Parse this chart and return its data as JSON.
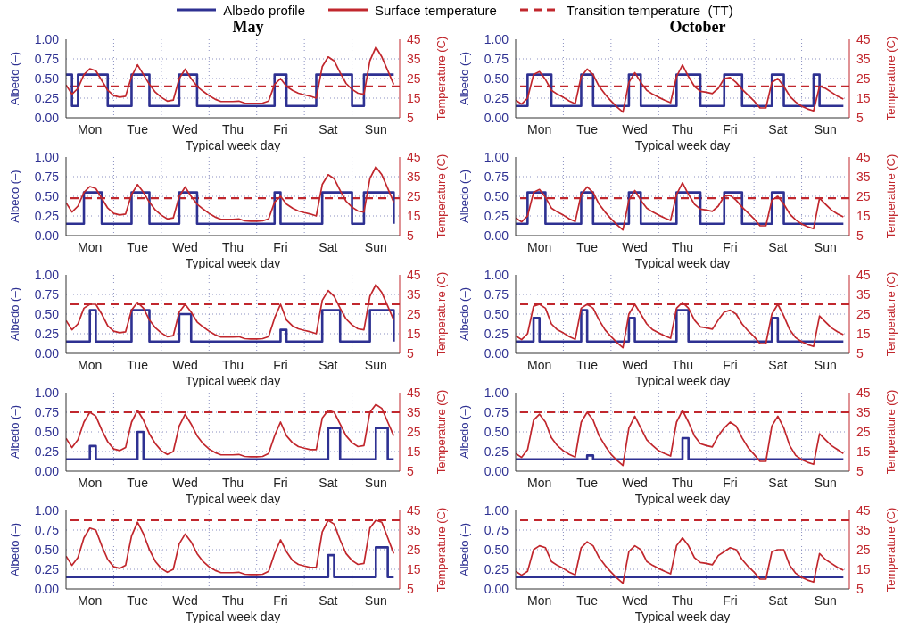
{
  "chart_data": [
    {
      "type": "line",
      "title": "May",
      "xlabel": "Typical week day",
      "ylabel": "Albedo (–)",
      "y2label": "Temperature (C)",
      "legend": "top",
      "grid": true,
      "categories": [
        null,
        null,
        null,
        null,
        "Mon",
        null,
        null,
        null,
        null,
        null,
        null,
        null,
        "Tue",
        null,
        null,
        null,
        null,
        null,
        null,
        null,
        "Wed",
        null,
        null,
        null,
        null,
        null,
        null,
        null,
        "Thu",
        null,
        null,
        null,
        null,
        null,
        null,
        null,
        "Fri",
        null,
        null,
        null,
        null,
        null,
        null,
        null,
        "Sat",
        null,
        null,
        null,
        null,
        null,
        null,
        null,
        "Sun",
        null,
        null,
        null
      ],
      "ylim": [
        0,
        1
      ],
      "yticks": [
        {
          "value": 0,
          "label": "0.00"
        },
        {
          "value": 0.25,
          "label": "0.25"
        },
        {
          "value": 0.5,
          "label": "0.50"
        },
        {
          "value": 0.75,
          "label": "0.75"
        },
        {
          "value": 1,
          "label": "1.00"
        }
      ],
      "y2lim": [
        5,
        45
      ],
      "y2ticks": [
        5,
        15,
        25,
        35,
        45
      ],
      "ref_lines": [
        {
          "axis": "y2",
          "value": 21,
          "label": "Transition temperature  (TT)",
          "color": "#c1272d",
          "line_style": "dashed"
        }
      ],
      "series": [
        {
          "name": "Albedo profile",
          "type": "step",
          "color": "#2e3192",
          "values": [
            0.55,
            0.15,
            0.55,
            0.55,
            0.55,
            0.55,
            0.55,
            0.15,
            0.15,
            0.15,
            0.15,
            0.55,
            0.55,
            0.55,
            0.15,
            0.15,
            0.15,
            0.15,
            0.15,
            0.55,
            0.55,
            0.55,
            0.15,
            0.15,
            0.15,
            0.15,
            0.15,
            0.15,
            0.15,
            0.15,
            0.15,
            0.15,
            0.15,
            0.15,
            0.15,
            0.55,
            0.55,
            0.15,
            0.15,
            0.15,
            0.15,
            0.15,
            0.55,
            0.55,
            0.55,
            0.55,
            0.55,
            0.55,
            0.15,
            0.15,
            0.55,
            0.55,
            0.55,
            0.55,
            0.55,
            0.55
          ]
        },
        {
          "name": "Surface temperature",
          "type": "line",
          "axis": "y2",
          "color": "#c1272d",
          "values": [
            21.7,
            17,
            20,
            27,
            30,
            29,
            24,
            19,
            16.3,
            15.5,
            16,
            26,
            32,
            27,
            22,
            18,
            15.4,
            13.5,
            14,
            25,
            29.8,
            25,
            21,
            18.5,
            16.3,
            14.5,
            13.3,
            13.3,
            13.3,
            13.5,
            12.5,
            12.3,
            12.3,
            12.5,
            13.5,
            22,
            25,
            21,
            19,
            17.5,
            16.7,
            16,
            15,
            31,
            36,
            34,
            28,
            22.5,
            19.5,
            17.5,
            17,
            34,
            41,
            36,
            29,
            22
          ]
        }
      ]
    },
    {
      "type": "line",
      "title": "October",
      "xlabel": "Typical week day",
      "ylabel": "Albedo (–)",
      "y2label": "Temperature (C)",
      "grid": true,
      "categories": [
        null,
        null,
        null,
        null,
        "Mon",
        null,
        null,
        null,
        null,
        null,
        null,
        null,
        "Tue",
        null,
        null,
        null,
        null,
        null,
        null,
        null,
        "Wed",
        null,
        null,
        null,
        null,
        null,
        null,
        null,
        "Thu",
        null,
        null,
        null,
        null,
        null,
        null,
        null,
        "Fri",
        null,
        null,
        null,
        null,
        null,
        null,
        null,
        "Sat",
        null,
        null,
        null,
        null,
        null,
        null,
        null,
        "Sun",
        null,
        null,
        null
      ],
      "ylim": [
        0,
        1
      ],
      "yticks": [
        {
          "value": 0,
          "label": "0.00"
        },
        {
          "value": 0.25,
          "label": "0.25"
        },
        {
          "value": 0.5,
          "label": "0.50"
        },
        {
          "value": 0.75,
          "label": "0.75"
        },
        {
          "value": 1,
          "label": "1.00"
        }
      ],
      "y2lim": [
        5,
        45
      ],
      "y2ticks": [
        5,
        15,
        25,
        35,
        45
      ],
      "ref_lines": [
        {
          "axis": "y2",
          "value": 21,
          "color": "#c1272d",
          "line_style": "dashed"
        }
      ],
      "series": [
        {
          "type": "step",
          "color": "#2e3192",
          "values": [
            0.15,
            0.15,
            0.55,
            0.55,
            0.55,
            0.55,
            0.15,
            0.15,
            0.15,
            0.15,
            0.15,
            0.55,
            0.55,
            0.15,
            0.15,
            0.15,
            0.15,
            0.15,
            0.15,
            0.55,
            0.55,
            0.15,
            0.15,
            0.15,
            0.15,
            0.15,
            0.15,
            0.55,
            0.55,
            0.55,
            0.55,
            0.15,
            0.15,
            0.15,
            0.15,
            0.55,
            0.55,
            0.55,
            0.15,
            0.15,
            0.15,
            0.15,
            0.15,
            0.55,
            0.55,
            0.15,
            0.15,
            0.15,
            0.15,
            0.15,
            0.55,
            0.15,
            0.15,
            0.15,
            0.15,
            0.15
          ]
        },
        {
          "type": "line",
          "axis": "y2",
          "color": "#c1272d",
          "values": [
            14,
            12,
            15,
            27,
            28.5,
            24.5,
            19,
            17,
            15.4,
            13.5,
            12.2,
            26,
            29.8,
            27,
            21,
            17,
            13.6,
            10.5,
            7.9,
            23,
            28,
            23,
            19,
            17,
            15.4,
            14,
            12.7,
            26,
            31.9,
            26,
            21,
            18.5,
            18,
            17.3,
            20,
            25,
            25.5,
            23,
            19.5,
            16.5,
            13.6,
            10,
            10,
            23,
            25,
            21,
            16,
            13,
            10.9,
            9.5,
            8.5,
            21,
            20,
            18,
            16,
            14.5
          ]
        }
      ]
    },
    {
      "type": "line",
      "xlabel": "Typical week day",
      "ylabel": "Albeco (–)",
      "y2label": "Temperature (C)",
      "grid": true,
      "categories": [
        null,
        null,
        null,
        null,
        "Mon",
        null,
        null,
        null,
        null,
        null,
        null,
        null,
        "Tue",
        null,
        null,
        null,
        null,
        null,
        null,
        null,
        "Wed",
        null,
        null,
        null,
        null,
        null,
        null,
        null,
        "Thu",
        null,
        null,
        null,
        null,
        null,
        null,
        null,
        "Fri",
        null,
        null,
        null,
        null,
        null,
        null,
        null,
        "Sat",
        null,
        null,
        null,
        null,
        null,
        null,
        null,
        "Sun",
        null,
        null,
        null
      ],
      "ylim": [
        0,
        1
      ],
      "yticks": [
        {
          "value": 0,
          "label": "0.00"
        },
        {
          "value": 0.25,
          "label": "0.25"
        },
        {
          "value": 0.5,
          "label": "0.50"
        },
        {
          "value": 0.75,
          "label": "0.75"
        },
        {
          "value": 1,
          "label": "1.00"
        }
      ],
      "y2lim": [
        5,
        45
      ],
      "y2ticks": [
        5,
        15,
        25,
        35,
        45
      ],
      "ref_lines": [
        {
          "axis": "y2",
          "value": 24,
          "color": "#c1272d",
          "line_style": "dashed"
        }
      ],
      "series": [
        {
          "type": "step",
          "color": "#2e3192",
          "values": [
            0.15,
            0.15,
            0.15,
            0.55,
            0.55,
            0.55,
            0.15,
            0.15,
            0.15,
            0.15,
            0.15,
            0.55,
            0.55,
            0.55,
            0.15,
            0.15,
            0.15,
            0.15,
            0.15,
            0.55,
            0.55,
            0.55,
            0.15,
            0.15,
            0.15,
            0.15,
            0.15,
            0.15,
            0.15,
            0.15,
            0.15,
            0.15,
            0.15,
            0.15,
            0.15,
            0.55,
            0.15,
            0.15,
            0.15,
            0.15,
            0.15,
            0.15,
            0.15,
            0.55,
            0.55,
            0.55,
            0.55,
            0.55,
            0.15,
            0.15,
            0.55,
            0.55,
            0.55,
            0.55,
            0.55,
            0.15
          ]
        },
        {
          "type": "line",
          "axis": "y2",
          "color": "#c1272d",
          "values": [
            21.7,
            17,
            20,
            27,
            30,
            29,
            24,
            19,
            16.3,
            15.5,
            16,
            26,
            31,
            27,
            22,
            18,
            15.4,
            13.5,
            14,
            25,
            29.8,
            25,
            21,
            18.5,
            16.3,
            14.5,
            13.3,
            13.3,
            13.3,
            13.5,
            12.5,
            12.3,
            12.3,
            12.5,
            13.5,
            22,
            25,
            21,
            19,
            17.5,
            16.7,
            16,
            15,
            31,
            36,
            34,
            28,
            22.5,
            19.5,
            17.5,
            17,
            34,
            40,
            36,
            29,
            22
          ]
        }
      ]
    },
    {
      "type": "line",
      "xlabel": "Typical week day",
      "ylabel": "Albedo (–)",
      "y2label": "Temperature (C)",
      "grid": true,
      "categories": [
        null,
        null,
        null,
        null,
        "Mon",
        null,
        null,
        null,
        null,
        null,
        null,
        null,
        "Tue",
        null,
        null,
        null,
        null,
        null,
        null,
        null,
        "Wed",
        null,
        null,
        null,
        null,
        null,
        null,
        null,
        "Thu",
        null,
        null,
        null,
        null,
        null,
        null,
        null,
        "Fri",
        null,
        null,
        null,
        null,
        null,
        null,
        null,
        "Sat",
        null,
        null,
        null,
        null,
        null,
        null,
        null,
        "Sun",
        null,
        null,
        null
      ],
      "ylim": [
        0,
        1
      ],
      "yticks": [
        {
          "value": 0,
          "label": "0.00"
        },
        {
          "value": 0.25,
          "label": "0.25"
        },
        {
          "value": 0.5,
          "label": "0.50"
        },
        {
          "value": 0.75,
          "label": "0.75"
        },
        {
          "value": 1,
          "label": "1.00"
        }
      ],
      "y2lim": [
        5,
        45
      ],
      "y2ticks": [
        5,
        15,
        25,
        35,
        45
      ],
      "ref_lines": [
        {
          "axis": "y2",
          "value": 24,
          "color": "#c1272d",
          "line_style": "dashed"
        }
      ],
      "series": [
        {
          "type": "step",
          "color": "#2e3192",
          "values": [
            0.15,
            0.15,
            0.55,
            0.55,
            0.55,
            0.15,
            0.15,
            0.15,
            0.15,
            0.15,
            0.15,
            0.55,
            0.55,
            0.15,
            0.15,
            0.15,
            0.15,
            0.15,
            0.15,
            0.55,
            0.55,
            0.15,
            0.15,
            0.15,
            0.15,
            0.15,
            0.15,
            0.55,
            0.55,
            0.55,
            0.55,
            0.15,
            0.15,
            0.15,
            0.15,
            0.55,
            0.55,
            0.55,
            0.15,
            0.15,
            0.15,
            0.15,
            0.15,
            0.55,
            0.55,
            0.15,
            0.15,
            0.15,
            0.15,
            0.15,
            0.15,
            0.15,
            0.15,
            0.15,
            0.15,
            0.15
          ]
        },
        {
          "type": "line",
          "axis": "y2",
          "color": "#c1272d",
          "values": [
            14,
            12,
            15,
            27,
            28.5,
            24.5,
            19,
            17,
            15.4,
            13.5,
            12.2,
            26,
            29.8,
            27,
            21,
            17,
            13.6,
            10.5,
            7.9,
            23,
            28,
            23,
            19,
            17,
            15.4,
            14,
            12.7,
            26,
            31.9,
            26,
            21,
            18.5,
            18,
            17.3,
            20,
            25,
            25.5,
            23,
            19.5,
            16.5,
            13.6,
            10,
            10,
            23,
            25,
            21,
            16,
            13,
            10.9,
            9.5,
            8.5,
            24,
            21,
            18,
            16,
            14.5
          ]
        }
      ]
    },
    {
      "type": "line",
      "xlabel": "Typical week day",
      "ylabel": "Albedo (–)",
      "y2label": "Temperature (C)",
      "grid": true,
      "categories": [
        null,
        null,
        null,
        null,
        "Mon",
        null,
        null,
        null,
        null,
        null,
        null,
        null,
        "Tue",
        null,
        null,
        null,
        null,
        null,
        null,
        null,
        "Wed",
        null,
        null,
        null,
        null,
        null,
        null,
        null,
        "Thu",
        null,
        null,
        null,
        null,
        null,
        null,
        null,
        "Fri",
        null,
        null,
        null,
        null,
        null,
        null,
        null,
        "Sat",
        null,
        null,
        null,
        null,
        null,
        null,
        null,
        "Sun",
        null,
        null,
        null
      ],
      "ylim": [
        0,
        1
      ],
      "yticks": [
        {
          "value": 0,
          "label": "0.00"
        },
        {
          "value": 0.25,
          "label": "0.25"
        },
        {
          "value": 0.5,
          "label": "0.50"
        },
        {
          "value": 0.75,
          "label": "0.75"
        },
        {
          "value": 1,
          "label": "1.00"
        }
      ],
      "y2lim": [
        5,
        45
      ],
      "y2ticks": [
        5,
        15,
        25,
        35,
        45
      ],
      "ref_lines": [
        {
          "axis": "y2",
          "value": 30,
          "color": "#c1272d",
          "line_style": "dashed"
        }
      ],
      "series": [
        {
          "type": "step",
          "color": "#2e3192",
          "values": [
            0.15,
            0.15,
            0.15,
            0.15,
            0.55,
            0.15,
            0.15,
            0.15,
            0.15,
            0.15,
            0.15,
            0.55,
            0.55,
            0.55,
            0.15,
            0.15,
            0.15,
            0.15,
            0.15,
            0.5,
            0.5,
            0.15,
            0.15,
            0.15,
            0.15,
            0.15,
            0.15,
            0.15,
            0.15,
            0.15,
            0.15,
            0.15,
            0.15,
            0.15,
            0.15,
            0.15,
            0.3,
            0.15,
            0.15,
            0.15,
            0.15,
            0.15,
            0.15,
            0.55,
            0.55,
            0.55,
            0.15,
            0.15,
            0.15,
            0.15,
            0.15,
            0.55,
            0.55,
            0.55,
            0.55,
            0.15
          ]
        },
        {
          "type": "line",
          "axis": "y2",
          "color": "#c1272d",
          "values": [
            21.7,
            17,
            20,
            28,
            30,
            30,
            25,
            19,
            16.3,
            15.5,
            16,
            27,
            31,
            28,
            22,
            18,
            15.4,
            13.5,
            14,
            26,
            30,
            26,
            21,
            18.5,
            16.3,
            14.5,
            13.3,
            13.3,
            13.3,
            13.5,
            12.5,
            12.3,
            12.3,
            12.5,
            13.5,
            23,
            30,
            22,
            19,
            17.5,
            16.7,
            16,
            15,
            32,
            37,
            34,
            28,
            22.5,
            19.5,
            17.5,
            17,
            34,
            40,
            36,
            29,
            22
          ]
        }
      ]
    },
    {
      "type": "line",
      "xlabel": "Typical week day",
      "ylabel": "Albedo (–)",
      "y2label": "Temperature (C)",
      "grid": true,
      "categories": [
        null,
        null,
        null,
        null,
        "Mon",
        null,
        null,
        null,
        null,
        null,
        null,
        null,
        "Tue",
        null,
        null,
        null,
        null,
        null,
        null,
        null,
        "Wed",
        null,
        null,
        null,
        null,
        null,
        null,
        null,
        "Thu",
        null,
        null,
        null,
        null,
        null,
        null,
        null,
        "Fri",
        null,
        null,
        null,
        null,
        null,
        null,
        null,
        "Sat",
        null,
        null,
        null,
        null,
        null,
        null,
        null,
        "Sun",
        null,
        null,
        null
      ],
      "ylim": [
        0,
        1
      ],
      "yticks": [
        {
          "value": 0,
          "label": "0.00"
        },
        {
          "value": 0.25,
          "label": "0.25"
        },
        {
          "value": 0.5,
          "label": "0.50"
        },
        {
          "value": 0.75,
          "label": "0.75"
        },
        {
          "value": 1,
          "label": "1.00"
        }
      ],
      "y2lim": [
        5,
        45
      ],
      "y2ticks": [
        5,
        15,
        25,
        35,
        45
      ],
      "ref_lines": [
        {
          "axis": "y2",
          "value": 30,
          "color": "#c1272d",
          "line_style": "dashed"
        }
      ],
      "series": [
        {
          "type": "step",
          "color": "#2e3192",
          "values": [
            0.15,
            0.15,
            0.15,
            0.45,
            0.15,
            0.15,
            0.15,
            0.15,
            0.15,
            0.15,
            0.15,
            0.55,
            0.15,
            0.15,
            0.15,
            0.15,
            0.15,
            0.15,
            0.15,
            0.45,
            0.15,
            0.15,
            0.15,
            0.15,
            0.15,
            0.15,
            0.15,
            0.55,
            0.55,
            0.15,
            0.15,
            0.15,
            0.15,
            0.15,
            0.15,
            0.15,
            0.15,
            0.15,
            0.15,
            0.15,
            0.15,
            0.15,
            0.15,
            0.45,
            0.15,
            0.15,
            0.15,
            0.15,
            0.15,
            0.15,
            0.15,
            0.15,
            0.15,
            0.15,
            0.15,
            0.15
          ]
        },
        {
          "type": "line",
          "axis": "y2",
          "color": "#c1272d",
          "values": [
            14,
            12,
            15,
            29,
            30,
            28,
            20,
            17,
            15.4,
            13.5,
            12.2,
            28,
            30,
            28,
            22,
            17,
            13.6,
            10.5,
            7.9,
            25,
            30,
            25,
            20,
            17,
            15.4,
            14,
            12.7,
            28,
            31,
            28,
            22,
            18.5,
            18,
            17.3,
            22,
            26,
            27,
            25,
            20,
            16.5,
            13.6,
            10,
            10,
            25,
            30,
            24,
            17,
            13,
            10.9,
            9.5,
            8.5,
            24,
            21,
            18,
            16,
            14.5
          ]
        }
      ]
    },
    {
      "type": "line",
      "xlabel": "Typical week day",
      "ylabel": "Albedo (–)",
      "y2label": "Temperature (C)",
      "grid": true,
      "categories": [
        null,
        null,
        null,
        null,
        "Mon",
        null,
        null,
        null,
        null,
        null,
        null,
        null,
        "Tue",
        null,
        null,
        null,
        null,
        null,
        null,
        null,
        "Wed",
        null,
        null,
        null,
        null,
        null,
        null,
        null,
        "Thu",
        null,
        null,
        null,
        null,
        null,
        null,
        null,
        "Fri",
        null,
        null,
        null,
        null,
        null,
        null,
        null,
        "Sat",
        null,
        null,
        null,
        null,
        null,
        null,
        null,
        "Sun",
        null,
        null,
        null
      ],
      "ylim": [
        0,
        1
      ],
      "yticks": [
        {
          "value": 0,
          "label": "0.00"
        },
        {
          "value": 0.25,
          "label": "0.25"
        },
        {
          "value": 0.5,
          "label": "0.50"
        },
        {
          "value": 0.75,
          "label": "0.75"
        },
        {
          "value": 1,
          "label": "1.00"
        }
      ],
      "y2lim": [
        5,
        45
      ],
      "y2ticks": [
        5,
        15,
        25,
        35,
        45
      ],
      "ref_lines": [
        {
          "axis": "y2",
          "value": 35,
          "color": "#c1272d",
          "line_style": "dashed"
        }
      ],
      "series": [
        {
          "type": "step",
          "color": "#2e3192",
          "values": [
            0.15,
            0.15,
            0.15,
            0.15,
            0.32,
            0.15,
            0.15,
            0.15,
            0.15,
            0.15,
            0.15,
            0.15,
            0.5,
            0.15,
            0.15,
            0.15,
            0.15,
            0.15,
            0.15,
            0.15,
            0.15,
            0.15,
            0.15,
            0.15,
            0.15,
            0.15,
            0.15,
            0.15,
            0.15,
            0.15,
            0.15,
            0.15,
            0.15,
            0.15,
            0.15,
            0.15,
            0.15,
            0.15,
            0.15,
            0.15,
            0.15,
            0.15,
            0.15,
            0.15,
            0.55,
            0.55,
            0.15,
            0.15,
            0.15,
            0.15,
            0.15,
            0.15,
            0.55,
            0.55,
            0.15,
            0.15
          ]
        },
        {
          "type": "line",
          "axis": "y2",
          "color": "#c1272d",
          "values": [
            21.7,
            17,
            21,
            30,
            35,
            33,
            26,
            20,
            16.3,
            15.5,
            17,
            30,
            36,
            31,
            24,
            19,
            15.4,
            13.5,
            15,
            28,
            34,
            29,
            23,
            19,
            16.3,
            14.5,
            13.3,
            13.3,
            13.3,
            13.5,
            12.5,
            12.3,
            12.3,
            12.5,
            14,
            23,
            30,
            23,
            19.5,
            17.5,
            16.7,
            16,
            16,
            32,
            36,
            35,
            29,
            23,
            19.5,
            17.5,
            18,
            35,
            39,
            37,
            30,
            23
          ]
        }
      ]
    },
    {
      "type": "line",
      "xlabel": "Typical week day",
      "ylabel": "Albedo (–)",
      "y2label": "Temperature (C)",
      "grid": true,
      "categories": [
        null,
        null,
        null,
        null,
        "Mon",
        null,
        null,
        null,
        null,
        null,
        null,
        null,
        "Tue",
        null,
        null,
        null,
        null,
        null,
        null,
        null,
        "Wed",
        null,
        null,
        null,
        null,
        null,
        null,
        null,
        "Thu",
        null,
        null,
        null,
        null,
        null,
        null,
        null,
        "Fri",
        null,
        null,
        null,
        null,
        null,
        null,
        null,
        "Sat",
        null,
        null,
        null,
        null,
        null,
        null,
        null,
        "Sun",
        null,
        null,
        null
      ],
      "ylim": [
        0,
        1
      ],
      "yticks": [
        {
          "value": 0,
          "label": "0.00"
        },
        {
          "value": 0.25,
          "label": "0.25"
        },
        {
          "value": 0.5,
          "label": "0.50"
        },
        {
          "value": 0.75,
          "label": "0.75"
        },
        {
          "value": 1,
          "label": "1.00"
        }
      ],
      "y2lim": [
        5,
        45
      ],
      "y2ticks": [
        5,
        15,
        25,
        35,
        45
      ],
      "ref_lines": [
        {
          "axis": "y2",
          "value": 35,
          "color": "#c1272d",
          "line_style": "dashed"
        }
      ],
      "series": [
        {
          "type": "step",
          "color": "#2e3192",
          "values": [
            0.15,
            0.15,
            0.15,
            0.15,
            0.15,
            0.15,
            0.15,
            0.15,
            0.15,
            0.15,
            0.15,
            0.15,
            0.2,
            0.15,
            0.15,
            0.15,
            0.15,
            0.15,
            0.15,
            0.15,
            0.15,
            0.15,
            0.15,
            0.15,
            0.15,
            0.15,
            0.15,
            0.15,
            0.42,
            0.15,
            0.15,
            0.15,
            0.15,
            0.15,
            0.15,
            0.15,
            0.15,
            0.15,
            0.15,
            0.15,
            0.15,
            0.15,
            0.15,
            0.15,
            0.15,
            0.15,
            0.15,
            0.15,
            0.15,
            0.15,
            0.15,
            0.15,
            0.15,
            0.15,
            0.15,
            0.15
          ]
        },
        {
          "type": "line",
          "axis": "y2",
          "color": "#c1272d",
          "values": [
            14,
            12,
            16,
            31,
            34,
            30,
            22,
            18,
            15.4,
            13.5,
            12.2,
            30,
            35,
            31,
            23,
            18,
            13.6,
            10.5,
            7.9,
            27,
            33,
            27,
            21,
            18,
            15.4,
            14,
            12.7,
            30,
            36,
            30,
            23,
            19,
            18,
            17.3,
            23,
            27,
            30,
            28,
            22,
            17,
            13.6,
            10,
            10,
            28,
            33,
            27,
            18,
            13,
            10.9,
            9.5,
            8.5,
            24,
            21,
            18,
            16,
            14
          ]
        }
      ]
    },
    {
      "type": "line",
      "xlabel": "Typical week day",
      "ylabel": "Albedo (–)",
      "y2label": "Temperature (C)",
      "grid": true,
      "categories": [
        null,
        null,
        null,
        null,
        "Mon",
        null,
        null,
        null,
        null,
        null,
        null,
        null,
        "Tue",
        null,
        null,
        null,
        null,
        null,
        null,
        null,
        "Wed",
        null,
        null,
        null,
        null,
        null,
        null,
        null,
        "Thu",
        null,
        null,
        null,
        null,
        null,
        null,
        null,
        "Fri",
        null,
        null,
        null,
        null,
        null,
        null,
        null,
        "Sat",
        null,
        null,
        null,
        null,
        null,
        null,
        null,
        "Sun",
        null,
        null,
        null
      ],
      "ylim": [
        0,
        1
      ],
      "yticks": [
        {
          "value": 0,
          "label": "0.00"
        },
        {
          "value": 0.25,
          "label": "0.25"
        },
        {
          "value": 0.5,
          "label": "0.50"
        },
        {
          "value": 0.75,
          "label": "0.75"
        },
        {
          "value": 1,
          "label": "1.00"
        }
      ],
      "y2lim": [
        5,
        45
      ],
      "y2ticks": [
        5,
        15,
        25,
        35,
        45
      ],
      "ref_lines": [
        {
          "axis": "y2",
          "value": 40,
          "color": "#c1272d",
          "line_style": "dashed"
        }
      ],
      "series": [
        {
          "type": "step",
          "color": "#2e3192",
          "values": [
            0.15,
            0.15,
            0.15,
            0.15,
            0.15,
            0.15,
            0.15,
            0.15,
            0.15,
            0.15,
            0.15,
            0.15,
            0.15,
            0.15,
            0.15,
            0.15,
            0.15,
            0.15,
            0.15,
            0.15,
            0.15,
            0.15,
            0.15,
            0.15,
            0.15,
            0.15,
            0.15,
            0.15,
            0.15,
            0.15,
            0.15,
            0.15,
            0.15,
            0.15,
            0.15,
            0.15,
            0.15,
            0.15,
            0.15,
            0.15,
            0.15,
            0.15,
            0.15,
            0.15,
            0.43,
            0.15,
            0.15,
            0.15,
            0.15,
            0.15,
            0.15,
            0.15,
            0.53,
            0.53,
            0.15,
            0.15
          ]
        },
        {
          "type": "line",
          "axis": "y2",
          "color": "#c1272d",
          "values": [
            21.7,
            17,
            21,
            31,
            36,
            35,
            27,
            20,
            16.3,
            15.5,
            17,
            32,
            39,
            33,
            25,
            19,
            15.4,
            13.5,
            15,
            28,
            33,
            29,
            23,
            19,
            16.3,
            14.5,
            13.3,
            13.3,
            13.3,
            13.5,
            12.5,
            12.3,
            12.3,
            12.5,
            14,
            23,
            30,
            24,
            19.5,
            17.5,
            16.7,
            16,
            16,
            34,
            40,
            38,
            30,
            23,
            19.5,
            17.5,
            18,
            36,
            40,
            39,
            31,
            23
          ]
        }
      ]
    },
    {
      "type": "line",
      "xlabel": "Typical week day",
      "ylabel": "Albedo (–)",
      "y2label": "Temperature (C)",
      "grid": true,
      "categories": [
        null,
        null,
        null,
        null,
        "Mon",
        null,
        null,
        null,
        null,
        null,
        null,
        null,
        "Tue",
        null,
        null,
        null,
        null,
        null,
        null,
        null,
        "Wed",
        null,
        null,
        null,
        null,
        null,
        null,
        null,
        "Thu",
        null,
        null,
        null,
        null,
        null,
        null,
        null,
        "Fri",
        null,
        null,
        null,
        null,
        null,
        null,
        null,
        "Sat",
        null,
        null,
        null,
        null,
        null,
        null,
        null,
        "Sun",
        null,
        null,
        null
      ],
      "ylim": [
        0,
        1
      ],
      "yticks": [
        {
          "value": 0,
          "label": "0.00"
        },
        {
          "value": 0.25,
          "label": "0.25"
        },
        {
          "value": 0.5,
          "label": "0.50"
        },
        {
          "value": 0.75,
          "label": "0.75"
        },
        {
          "value": 1,
          "label": "1.00"
        }
      ],
      "y2lim": [
        5,
        45
      ],
      "y2ticks": [
        5,
        15,
        25,
        35,
        45
      ],
      "ref_lines": [
        {
          "axis": "y2",
          "value": 40,
          "color": "#c1272d",
          "line_style": "dashed"
        }
      ],
      "series": [
        {
          "type": "step",
          "color": "#2e3192",
          "values": [
            0.15,
            0.15,
            0.15,
            0.15,
            0.15,
            0.15,
            0.15,
            0.15,
            0.15,
            0.15,
            0.15,
            0.15,
            0.15,
            0.15,
            0.15,
            0.15,
            0.15,
            0.15,
            0.15,
            0.15,
            0.15,
            0.15,
            0.15,
            0.15,
            0.15,
            0.15,
            0.15,
            0.15,
            0.15,
            0.15,
            0.15,
            0.15,
            0.15,
            0.15,
            0.15,
            0.15,
            0.15,
            0.15,
            0.15,
            0.15,
            0.15,
            0.15,
            0.15,
            0.15,
            0.15,
            0.15,
            0.15,
            0.15,
            0.15,
            0.15,
            0.15,
            0.15,
            0.15,
            0.15,
            0.15,
            0.15
          ]
        },
        {
          "type": "line",
          "axis": "y2",
          "color": "#c1272d",
          "values": [
            14,
            12,
            14,
            25,
            27,
            26,
            19,
            17,
            15.4,
            13.5,
            12.2,
            26,
            29,
            27,
            21,
            17,
            13.6,
            10.5,
            7.9,
            24,
            27,
            25,
            19,
            17,
            15.4,
            14,
            12.7,
            27,
            31,
            27,
            21,
            18.5,
            18,
            17.3,
            22,
            24,
            26,
            25,
            20,
            16.5,
            13.6,
            10,
            10,
            24,
            25,
            25,
            17,
            13,
            10.9,
            9.5,
            8.5,
            23,
            20,
            18,
            16,
            14.5
          ]
        }
      ]
    }
  ]
}
